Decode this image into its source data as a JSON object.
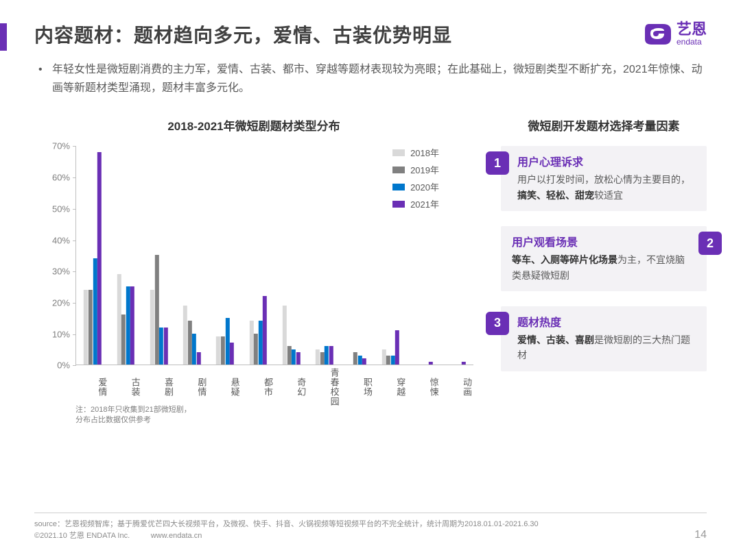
{
  "title": "内容题材：题材趋向多元，爱情、古装优势明显",
  "logo": {
    "cn": "艺恩",
    "en": "endata"
  },
  "bullet": "年轻女性是微短剧消费的主力军，爱情、古装、都市、穿越等题材表现较为亮眼；在此基础上，微短剧类型不断扩充，2021年惊悚、动画等新题材类型涌现，题材丰富多元化。",
  "chart": {
    "title": "2018-2021年微短剧题材类型分布",
    "type": "bar",
    "ymax": 70,
    "ytick_step": 10,
    "ysuffix": "%",
    "categories": [
      "爱情",
      "古装",
      "喜剧",
      "剧情",
      "悬疑",
      "都市",
      "奇幻",
      "青春校园",
      "职场",
      "穿越",
      "惊悚",
      "动画"
    ],
    "series": [
      {
        "name": "2018年",
        "color": "#d9d9d9",
        "values": [
          24,
          29,
          24,
          19,
          9,
          14,
          19,
          5,
          0,
          5,
          0,
          0
        ]
      },
      {
        "name": "2019年",
        "color": "#808080",
        "values": [
          24,
          16,
          35,
          14,
          9,
          10,
          6,
          4,
          4,
          3,
          0,
          0
        ]
      },
      {
        "name": "2020年",
        "color": "#0077cc",
        "values": [
          34,
          25,
          12,
          10,
          15,
          14,
          5,
          6,
          3,
          3,
          0,
          0
        ]
      },
      {
        "name": "2021年",
        "color": "#6a2fb5",
        "values": [
          68,
          25,
          12,
          4,
          7,
          22,
          4,
          6,
          2,
          11,
          1,
          1
        ]
      }
    ],
    "note_line1": "注：2018年只收集到21部微短剧，",
    "note_line2": "分布占比数据仅供参考",
    "axis_color": "#bfbfbf",
    "tick_font_color": "#7f7f7f"
  },
  "factors": {
    "title": "微短剧开发题材选择考量因素",
    "accent": "#6a2fb5",
    "bg": "#f3f2f5",
    "items": [
      {
        "num": "1",
        "side": "left",
        "title": "用户心理诉求",
        "body_pre": "用户以打发时间，放松心情为主要目的，",
        "body_bold": "搞笑、轻松、甜宠",
        "body_post": "较适宜"
      },
      {
        "num": "2",
        "side": "right",
        "title": "用户观看场景",
        "body_pre": "",
        "body_bold": "等车、入厕等碎片化场景",
        "body_post": "为主，不宜烧脑类悬疑微短剧"
      },
      {
        "num": "3",
        "side": "left",
        "title": "题材热度",
        "body_pre": "",
        "body_bold": "爱情、古装、喜剧",
        "body_post": "是微短剧的三大热门题材"
      }
    ]
  },
  "footer": {
    "source": "source：艺恩视频智库；基于腾爱优芒四大长视频平台，及微视、快手、抖音、火锅视频等短视频平台的不完全统计，统计周期为2018.01.01-2021.6.30",
    "copyright": "©2021.10 艺恩 ENDATA Inc.",
    "url": "www.endata.cn",
    "page": "14"
  }
}
